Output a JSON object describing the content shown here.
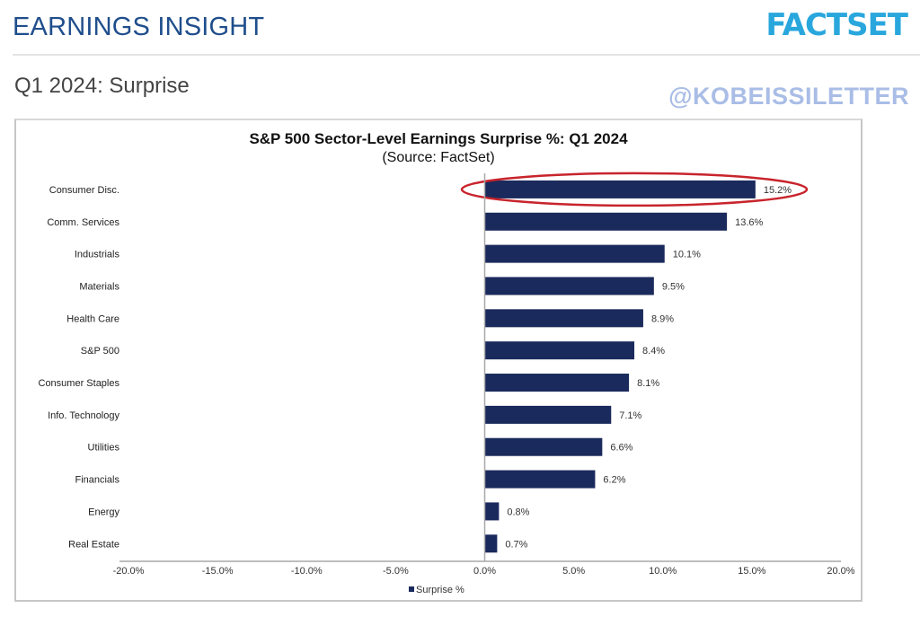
{
  "header": {
    "title": "EARNINGS INSIGHT",
    "logo": "FACTSET",
    "subtitle": "Q1 2024: Surprise",
    "watermark": "@KOBEISSILETTER"
  },
  "colors": {
    "bar": "#1b2a5c",
    "highlight": "#c8242c",
    "header_title": "#1f4e8c",
    "logo": "#29a7dd"
  },
  "chart_data": {
    "type": "bar",
    "orientation": "horizontal",
    "title": "S&P 500 Sector-Level Earnings Surprise %: Q1 2024",
    "subtitle": "(Source: FactSet)",
    "xlabel": "",
    "ylabel": "",
    "xlim": [
      -20,
      20
    ],
    "xticks": [
      -20,
      -15,
      -10,
      -5,
      0,
      5,
      10,
      15,
      20
    ],
    "xtick_labels": [
      "-20.0%",
      "-15.0%",
      "-10.0%",
      "-5.0%",
      "0.0%",
      "5.0%",
      "10.0%",
      "15.0%",
      "20.0%"
    ],
    "grid": false,
    "legend": {
      "position": "bottom",
      "entries": [
        "Surprise %"
      ]
    },
    "categories": [
      "Consumer Disc.",
      "Comm. Services",
      "Industrials",
      "Materials",
      "Health Care",
      "S&P 500",
      "Consumer Staples",
      "Info. Technology",
      "Utilities",
      "Financials",
      "Energy",
      "Real Estate"
    ],
    "series": [
      {
        "name": "Surprise %",
        "values": [
          15.2,
          13.6,
          10.1,
          9.5,
          8.9,
          8.4,
          8.1,
          7.1,
          6.6,
          6.2,
          0.8,
          0.7
        ],
        "labels": [
          "15.2%",
          "13.6%",
          "10.1%",
          "9.5%",
          "8.9%",
          "8.4%",
          "8.1%",
          "7.1%",
          "6.6%",
          "6.2%",
          "0.8%",
          "0.7%"
        ]
      }
    ],
    "annotations": [
      {
        "type": "ellipse",
        "target": "Consumer Disc.",
        "color": "red"
      }
    ]
  }
}
